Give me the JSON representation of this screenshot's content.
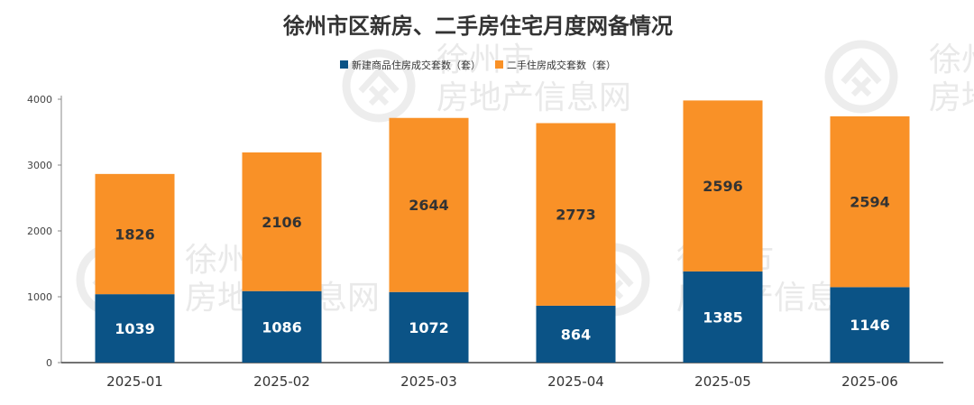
{
  "watermark": {
    "line1": "徐州市",
    "line2": "房地产信息网",
    "logo": "house-x-logo"
  },
  "chart_data": {
    "type": "bar",
    "stacked": true,
    "title": "徐州市区新房、二手房住宅月度网备情况",
    "categories": [
      "2025-01",
      "2025-02",
      "2025-03",
      "2025-04",
      "2025-05",
      "2025-06"
    ],
    "series": [
      {
        "name": "新建商品住房成交套数（套）",
        "color": "#0b5386",
        "label_color": "#ffffff",
        "values": [
          1039,
          1086,
          1072,
          864,
          1385,
          1146
        ]
      },
      {
        "name": "二手住房成交套数（套）",
        "color": "#f99127",
        "label_color": "#333333",
        "values": [
          1826,
          2106,
          2644,
          2773,
          2596,
          2594
        ]
      }
    ],
    "ylim": [
      0,
      4000
    ],
    "yticks": [
      0,
      1000,
      2000,
      3000,
      4000
    ],
    "xlabel": "",
    "ylabel": "",
    "grid": false,
    "legend": "top"
  }
}
